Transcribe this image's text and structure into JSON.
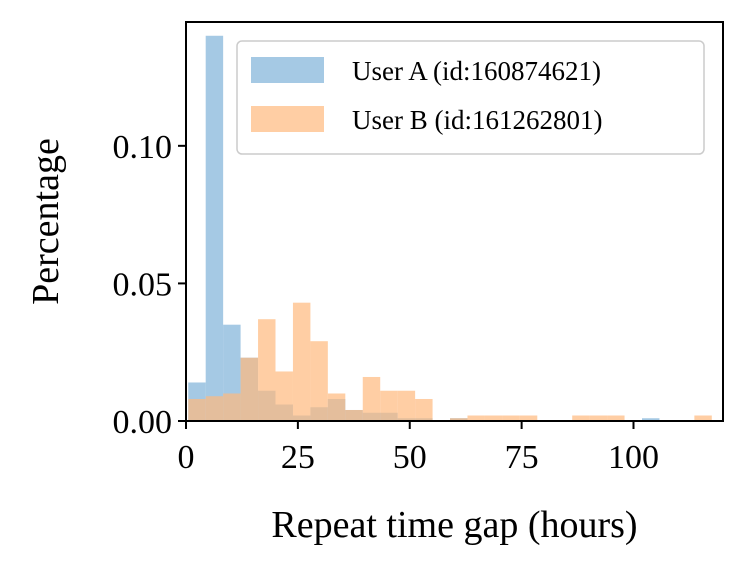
{
  "chart_data": {
    "type": "histogram",
    "title": "",
    "xlabel": "Repeat time gap (hours)",
    "ylabel": "Percentage",
    "xlim": [
      0,
      120
    ],
    "ylim": [
      0,
      0.145
    ],
    "xticks": [
      0,
      25,
      50,
      75,
      100
    ],
    "xtick_labels": [
      "0",
      "25",
      "50",
      "75",
      "100"
    ],
    "yticks": [
      0,
      0.05,
      0.1
    ],
    "ytick_labels": [
      "0.00",
      "0.05",
      "0.10"
    ],
    "grid": false,
    "legend_position": "top-right",
    "series": [
      {
        "name": "User A (id:160874621)",
        "color": "#7fb2d9",
        "opacity": 0.7,
        "bins": [
          {
            "x0": 0.5,
            "x1": 4.4,
            "value": 0.014
          },
          {
            "x0": 4.4,
            "x1": 8.3,
            "value": 0.14
          },
          {
            "x0": 8.3,
            "x1": 12.2,
            "value": 0.035
          },
          {
            "x0": 12.2,
            "x1": 16.1,
            "value": 0.023
          },
          {
            "x0": 16.1,
            "x1": 20.0,
            "value": 0.011
          },
          {
            "x0": 20.0,
            "x1": 23.9,
            "value": 0.006
          },
          {
            "x0": 23.9,
            "x1": 27.8,
            "value": 0.002
          },
          {
            "x0": 27.8,
            "x1": 31.7,
            "value": 0.005
          },
          {
            "x0": 31.7,
            "x1": 35.6,
            "value": 0.008
          },
          {
            "x0": 35.6,
            "x1": 39.5,
            "value": 0.004
          },
          {
            "x0": 39.5,
            "x1": 43.4,
            "value": 0.003
          },
          {
            "x0": 43.4,
            "x1": 47.3,
            "value": 0.003
          },
          {
            "x0": 47.3,
            "x1": 51.2,
            "value": 0.001
          },
          {
            "x0": 51.2,
            "x1": 55.1,
            "value": 0.001
          },
          {
            "x0": 59.0,
            "x1": 62.9,
            "value": 0.001
          },
          {
            "x0": 101.9,
            "x1": 105.8,
            "value": 0.001
          }
        ]
      },
      {
        "name": "User B (id:161262801)",
        "color": "#ffb97e",
        "opacity": 0.7,
        "bins": [
          {
            "x0": 0.5,
            "x1": 4.4,
            "value": 0.008
          },
          {
            "x0": 4.4,
            "x1": 8.3,
            "value": 0.009
          },
          {
            "x0": 8.3,
            "x1": 12.2,
            "value": 0.01
          },
          {
            "x0": 12.2,
            "x1": 16.1,
            "value": 0.023
          },
          {
            "x0": 16.1,
            "x1": 20.0,
            "value": 0.037
          },
          {
            "x0": 20.0,
            "x1": 23.9,
            "value": 0.018
          },
          {
            "x0": 23.9,
            "x1": 27.8,
            "value": 0.043
          },
          {
            "x0": 27.8,
            "x1": 31.7,
            "value": 0.029
          },
          {
            "x0": 31.7,
            "x1": 35.6,
            "value": 0.01
          },
          {
            "x0": 35.6,
            "x1": 39.5,
            "value": 0.004
          },
          {
            "x0": 39.5,
            "x1": 43.4,
            "value": 0.016
          },
          {
            "x0": 43.4,
            "x1": 47.3,
            "value": 0.011
          },
          {
            "x0": 47.3,
            "x1": 51.2,
            "value": 0.011
          },
          {
            "x0": 51.2,
            "x1": 55.1,
            "value": 0.008
          },
          {
            "x0": 59.0,
            "x1": 62.9,
            "value": 0.001
          },
          {
            "x0": 62.9,
            "x1": 66.8,
            "value": 0.002
          },
          {
            "x0": 66.8,
            "x1": 70.7,
            "value": 0.002
          },
          {
            "x0": 70.7,
            "x1": 74.6,
            "value": 0.002
          },
          {
            "x0": 74.6,
            "x1": 78.5,
            "value": 0.002
          },
          {
            "x0": 86.3,
            "x1": 90.2,
            "value": 0.002
          },
          {
            "x0": 90.2,
            "x1": 94.1,
            "value": 0.002
          },
          {
            "x0": 94.1,
            "x1": 98.0,
            "value": 0.002
          },
          {
            "x0": 113.6,
            "x1": 117.5,
            "value": 0.002
          }
        ]
      }
    ]
  }
}
